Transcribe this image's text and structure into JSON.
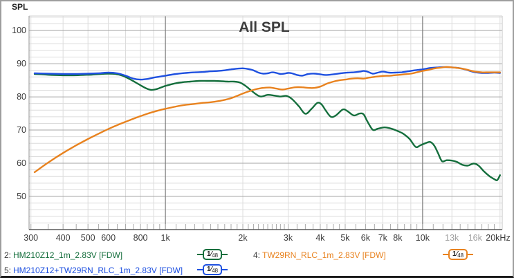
{
  "window": {
    "corner_label": "SPL"
  },
  "chart_data": {
    "type": "line",
    "title": "All SPL",
    "ylabel": "SPL",
    "x_scale": "log",
    "xlim": [
      295,
      20400
    ],
    "ylim": [
      40,
      104.4
    ],
    "grid": true,
    "y_major_ticks": [
      50,
      60,
      70,
      80,
      90,
      100
    ],
    "y_minor_step": 2,
    "x_major_gridlines": [
      1000,
      10000
    ],
    "x_minor_gridlines": [
      300,
      400,
      500,
      600,
      700,
      800,
      900,
      2000,
      3000,
      4000,
      5000,
      6000,
      7000,
      8000,
      9000,
      13000,
      16000,
      20000
    ],
    "x_tick_labels": [
      {
        "f": 300,
        "label": "300"
      },
      {
        "f": 400,
        "label": "400"
      },
      {
        "f": 500,
        "label": "500"
      },
      {
        "f": 600,
        "label": "600"
      },
      {
        "f": 800,
        "label": "800"
      },
      {
        "f": 1000,
        "label": "1k"
      },
      {
        "f": 2000,
        "label": "2k"
      },
      {
        "f": 3000,
        "label": "3k"
      },
      {
        "f": 4000,
        "label": "4k"
      },
      {
        "f": 5000,
        "label": "5k"
      },
      {
        "f": 6000,
        "label": "6k"
      },
      {
        "f": 7000,
        "label": "7k"
      },
      {
        "f": 8000,
        "label": "8k"
      },
      {
        "f": 10000,
        "label": "10k"
      },
      {
        "f": 13000,
        "label": "13k",
        "muted": true
      },
      {
        "f": 16000,
        "label": "16k",
        "muted": true
      },
      {
        "f": 20000,
        "label": "20kHz"
      }
    ],
    "legend_position": "bottom",
    "series": [
      {
        "key": "hm210z12",
        "prefix": "2:",
        "name": "HM210Z12_1m_2.83V [FDW]",
        "smoothing": "1/48",
        "color": "#146e3c",
        "points": [
          [
            310,
            86.9
          ],
          [
            330,
            86.8
          ],
          [
            360,
            86.6
          ],
          [
            400,
            86.5
          ],
          [
            440,
            86.5
          ],
          [
            480,
            86.6
          ],
          [
            520,
            86.7
          ],
          [
            560,
            86.9
          ],
          [
            600,
            87.0
          ],
          [
            640,
            86.9
          ],
          [
            680,
            86.4
          ],
          [
            720,
            85.5
          ],
          [
            760,
            84.5
          ],
          [
            800,
            83.5
          ],
          [
            840,
            82.6
          ],
          [
            880,
            82.1
          ],
          [
            920,
            82.3
          ],
          [
            960,
            82.8
          ],
          [
            1000,
            83.3
          ],
          [
            1080,
            84.0
          ],
          [
            1160,
            84.4
          ],
          [
            1250,
            84.6
          ],
          [
            1350,
            84.8
          ],
          [
            1450,
            84.8
          ],
          [
            1550,
            84.8
          ],
          [
            1650,
            84.7
          ],
          [
            1750,
            84.6
          ],
          [
            1850,
            84.6
          ],
          [
            1950,
            84.3
          ],
          [
            2050,
            83.3
          ],
          [
            2150,
            82.0
          ],
          [
            2250,
            80.8
          ],
          [
            2350,
            80.1
          ],
          [
            2500,
            80.6
          ],
          [
            2650,
            80.4
          ],
          [
            2800,
            80.1
          ],
          [
            2950,
            80.3
          ],
          [
            3100,
            79.4
          ],
          [
            3300,
            77.2
          ],
          [
            3500,
            74.9
          ],
          [
            3700,
            76.4
          ],
          [
            3900,
            78.2
          ],
          [
            4050,
            77.7
          ],
          [
            4200,
            75.9
          ],
          [
            4400,
            74.0
          ],
          [
            4600,
            74.4
          ],
          [
            4900,
            76.2
          ],
          [
            5100,
            75.7
          ],
          [
            5400,
            74.4
          ],
          [
            5700,
            75.0
          ],
          [
            5900,
            74.7
          ],
          [
            6100,
            72.6
          ],
          [
            6400,
            70.1
          ],
          [
            6700,
            70.4
          ],
          [
            7100,
            70.8
          ],
          [
            7500,
            70.5
          ],
          [
            8000,
            69.7
          ],
          [
            8400,
            68.9
          ],
          [
            8900,
            67.3
          ],
          [
            9400,
            64.9
          ],
          [
            9800,
            65.4
          ],
          [
            10300,
            66.1
          ],
          [
            10700,
            66.4
          ],
          [
            11100,
            65.3
          ],
          [
            11500,
            62.9
          ],
          [
            11900,
            60.6
          ],
          [
            12400,
            60.9
          ],
          [
            13000,
            60.8
          ],
          [
            13600,
            60.4
          ],
          [
            14300,
            59.5
          ],
          [
            15000,
            59.3
          ],
          [
            15800,
            59.9
          ],
          [
            16500,
            59.3
          ],
          [
            17300,
            57.6
          ],
          [
            18200,
            56.1
          ],
          [
            19000,
            55.2
          ],
          [
            19500,
            54.9
          ],
          [
            20000,
            56.4
          ]
        ]
      },
      {
        "key": "hm210z12-tw29rn-sum",
        "prefix": "5:",
        "name": "HM210Z12+TW29RN_RLC_1m_2.83V [FDW]",
        "smoothing": "1/48",
        "color": "#1e50e0",
        "points": [
          [
            310,
            87.1
          ],
          [
            350,
            87.0
          ],
          [
            400,
            86.9
          ],
          [
            450,
            86.9
          ],
          [
            500,
            87.0
          ],
          [
            550,
            87.1
          ],
          [
            600,
            87.3
          ],
          [
            650,
            87.1
          ],
          [
            700,
            86.4
          ],
          [
            750,
            85.5
          ],
          [
            800,
            85.2
          ],
          [
            850,
            85.4
          ],
          [
            900,
            85.8
          ],
          [
            950,
            86.1
          ],
          [
            1000,
            86.4
          ],
          [
            1100,
            86.9
          ],
          [
            1200,
            87.2
          ],
          [
            1300,
            87.4
          ],
          [
            1400,
            87.5
          ],
          [
            1500,
            87.7
          ],
          [
            1600,
            87.8
          ],
          [
            1700,
            88.0
          ],
          [
            1800,
            88.3
          ],
          [
            1900,
            88.5
          ],
          [
            2000,
            88.6
          ],
          [
            2100,
            88.4
          ],
          [
            2200,
            88.0
          ],
          [
            2300,
            87.3
          ],
          [
            2400,
            87.0
          ],
          [
            2500,
            87.1
          ],
          [
            2600,
            87.4
          ],
          [
            2700,
            87.2
          ],
          [
            2800,
            86.9
          ],
          [
            2900,
            87.0
          ],
          [
            3000,
            87.2
          ],
          [
            3100,
            87.1
          ],
          [
            3250,
            86.6
          ],
          [
            3400,
            86.4
          ],
          [
            3600,
            86.9
          ],
          [
            3800,
            87.0
          ],
          [
            4000,
            86.8
          ],
          [
            4200,
            86.6
          ],
          [
            4500,
            86.8
          ],
          [
            4800,
            87.1
          ],
          [
            5100,
            87.3
          ],
          [
            5400,
            87.4
          ],
          [
            5700,
            87.6
          ],
          [
            5900,
            87.8
          ],
          [
            6100,
            87.6
          ],
          [
            6400,
            87.0
          ],
          [
            6700,
            87.3
          ],
          [
            7000,
            87.6
          ],
          [
            7400,
            87.3
          ],
          [
            7800,
            87.3
          ],
          [
            8300,
            87.4
          ],
          [
            8800,
            87.7
          ],
          [
            9300,
            88.0
          ],
          [
            10000,
            88.3
          ],
          [
            10700,
            88.7
          ],
          [
            11500,
            88.9
          ],
          [
            12200,
            89.0
          ],
          [
            13000,
            88.9
          ],
          [
            13800,
            88.7
          ],
          [
            14600,
            88.3
          ],
          [
            15300,
            87.8
          ],
          [
            16000,
            87.4
          ],
          [
            17000,
            87.2
          ],
          [
            18000,
            87.2
          ],
          [
            19000,
            87.3
          ],
          [
            20000,
            87.2
          ]
        ]
      },
      {
        "key": "tw29rn-rlc",
        "prefix": "4:",
        "name": "TW29RN_RLC_1m_2.83V [FDW]",
        "smoothing": "1/48",
        "color": "#e8821e",
        "points": [
          [
            310,
            57.3
          ],
          [
            350,
            60.2
          ],
          [
            400,
            63.1
          ],
          [
            450,
            65.4
          ],
          [
            500,
            67.3
          ],
          [
            550,
            68.9
          ],
          [
            600,
            70.3
          ],
          [
            650,
            71.5
          ],
          [
            700,
            72.5
          ],
          [
            750,
            73.4
          ],
          [
            800,
            74.2
          ],
          [
            850,
            74.9
          ],
          [
            900,
            75.5
          ],
          [
            950,
            76.0
          ],
          [
            1000,
            76.4
          ],
          [
            1100,
            77.1
          ],
          [
            1200,
            77.6
          ],
          [
            1300,
            77.9
          ],
          [
            1400,
            78.2
          ],
          [
            1500,
            78.4
          ],
          [
            1600,
            78.7
          ],
          [
            1700,
            79.1
          ],
          [
            1800,
            79.6
          ],
          [
            1900,
            80.3
          ],
          [
            2000,
            81.0
          ],
          [
            2100,
            81.6
          ],
          [
            2250,
            82.3
          ],
          [
            2400,
            82.7
          ],
          [
            2550,
            82.8
          ],
          [
            2700,
            82.5
          ],
          [
            2850,
            82.2
          ],
          [
            3000,
            82.5
          ],
          [
            3200,
            82.9
          ],
          [
            3400,
            82.9
          ],
          [
            3600,
            82.7
          ],
          [
            3800,
            82.7
          ],
          [
            4000,
            83.1
          ],
          [
            4250,
            84.0
          ],
          [
            4500,
            84.6
          ],
          [
            4750,
            85.0
          ],
          [
            5000,
            85.2
          ],
          [
            5300,
            85.5
          ],
          [
            5600,
            85.6
          ],
          [
            5900,
            85.5
          ],
          [
            6200,
            85.8
          ],
          [
            6600,
            86.1
          ],
          [
            7000,
            86.3
          ],
          [
            7500,
            86.4
          ],
          [
            8000,
            86.6
          ],
          [
            8500,
            86.8
          ],
          [
            9000,
            87.0
          ],
          [
            9500,
            87.4
          ],
          [
            10000,
            87.8
          ],
          [
            10500,
            88.1
          ],
          [
            11000,
            88.5
          ],
          [
            11700,
            88.8
          ],
          [
            12300,
            89.0
          ],
          [
            13000,
            88.9
          ],
          [
            13700,
            88.7
          ],
          [
            14500,
            88.4
          ],
          [
            15200,
            88.0
          ],
          [
            16000,
            87.6
          ],
          [
            17000,
            87.4
          ],
          [
            18000,
            87.4
          ],
          [
            19000,
            87.4
          ],
          [
            20000,
            87.4
          ]
        ]
      }
    ],
    "colors": {
      "axis_text": "#3c3c3c",
      "axis_text_muted": "#a0a0a0",
      "grid_minor": "#dcdcdc",
      "grid_major_h": "#a6a6a6",
      "grid_major_v": "#7a7a7a",
      "tick": "#aaaaaa",
      "frame_top": "#d4d4d4",
      "frame_left": "#909090",
      "frame_right": "#c4c4c4",
      "frame_bottom": "#5a5a5a"
    }
  }
}
